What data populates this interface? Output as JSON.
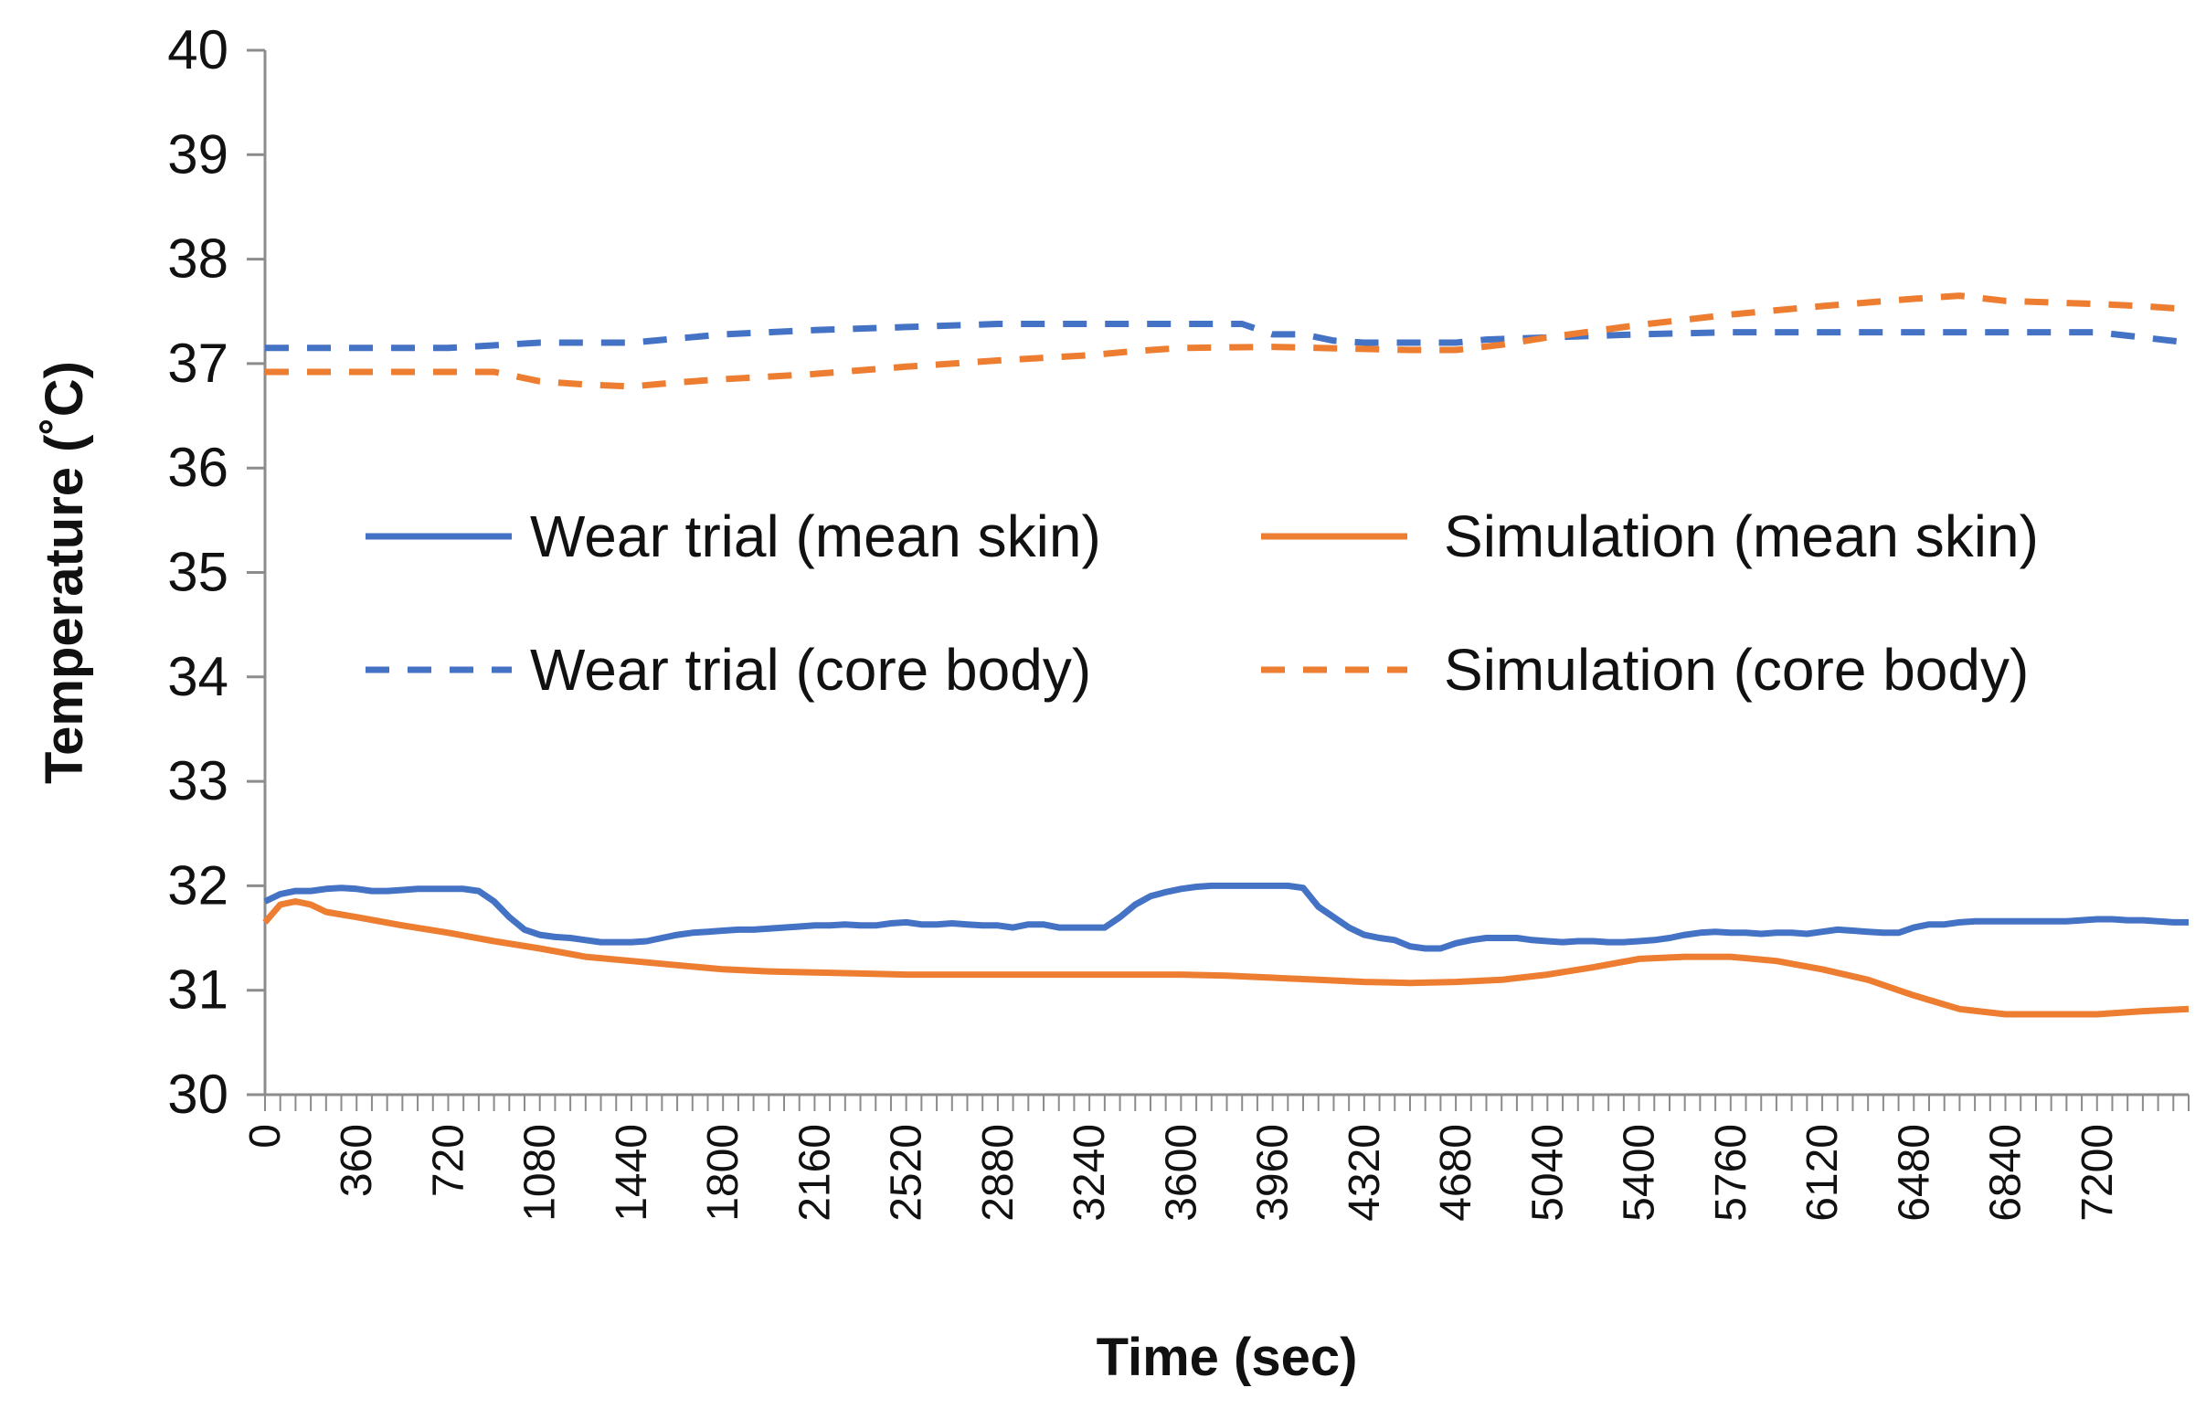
{
  "chart_data": {
    "type": "line",
    "title": "",
    "xlabel": "Time (sec)",
    "ylabel": "Temperature (˚C)",
    "xlim": [
      0,
      7560
    ],
    "ylim": [
      30,
      40
    ],
    "yticks": [
      30,
      31,
      32,
      33,
      34,
      35,
      36,
      37,
      38,
      39,
      40
    ],
    "xtick_labels": [
      0,
      360,
      720,
      1080,
      1440,
      1800,
      2160,
      2520,
      2880,
      3240,
      3600,
      3960,
      4320,
      4680,
      5040,
      5400,
      5760,
      6120,
      6480,
      6840,
      7200
    ],
    "minor_tick_step": 60,
    "grid": false,
    "legend_position": "center",
    "series": [
      {
        "name": "Wear trial (mean skin)",
        "color": "#4472C4",
        "dash": "solid",
        "x": [
          0,
          60,
          120,
          180,
          240,
          300,
          360,
          420,
          480,
          540,
          600,
          660,
          720,
          780,
          840,
          900,
          960,
          1020,
          1080,
          1140,
          1200,
          1260,
          1320,
          1380,
          1440,
          1500,
          1560,
          1620,
          1680,
          1740,
          1800,
          1860,
          1920,
          1980,
          2040,
          2100,
          2160,
          2220,
          2280,
          2340,
          2400,
          2460,
          2520,
          2580,
          2640,
          2700,
          2760,
          2820,
          2880,
          2940,
          3000,
          3060,
          3120,
          3180,
          3240,
          3300,
          3360,
          3420,
          3480,
          3540,
          3600,
          3660,
          3720,
          3780,
          3840,
          3900,
          3960,
          4020,
          4080,
          4140,
          4200,
          4260,
          4320,
          4380,
          4440,
          4500,
          4560,
          4620,
          4680,
          4740,
          4800,
          4860,
          4920,
          4980,
          5040,
          5100,
          5160,
          5220,
          5280,
          5340,
          5400,
          5460,
          5520,
          5580,
          5640,
          5700,
          5760,
          5820,
          5880,
          5940,
          6000,
          6060,
          6120,
          6180,
          6240,
          6300,
          6360,
          6420,
          6480,
          6540,
          6600,
          6660,
          6720,
          6780,
          6840,
          6900,
          6960,
          7020,
          7080,
          7140,
          7200,
          7260,
          7320,
          7380,
          7440,
          7500,
          7560
        ],
        "values": [
          31.85,
          31.92,
          31.95,
          31.95,
          31.97,
          31.98,
          31.97,
          31.95,
          31.95,
          31.96,
          31.97,
          31.97,
          31.97,
          31.97,
          31.95,
          31.85,
          31.7,
          31.58,
          31.53,
          31.51,
          31.5,
          31.48,
          31.46,
          31.46,
          31.46,
          31.47,
          31.5,
          31.53,
          31.55,
          31.56,
          31.57,
          31.58,
          31.58,
          31.59,
          31.6,
          31.61,
          31.62,
          31.62,
          31.63,
          31.62,
          31.62,
          31.64,
          31.65,
          31.63,
          31.63,
          31.64,
          31.63,
          31.62,
          31.62,
          31.6,
          31.63,
          31.63,
          31.6,
          31.6,
          31.6,
          31.6,
          31.7,
          31.82,
          31.9,
          31.94,
          31.97,
          31.99,
          32.0,
          32.0,
          32.0,
          32.0,
          32.0,
          32.0,
          31.98,
          31.8,
          31.7,
          31.6,
          31.53,
          31.5,
          31.48,
          31.42,
          31.4,
          31.4,
          31.45,
          31.48,
          31.5,
          31.5,
          31.5,
          31.48,
          31.47,
          31.46,
          31.47,
          31.47,
          31.46,
          31.46,
          31.47,
          31.48,
          31.5,
          31.53,
          31.55,
          31.56,
          31.55,
          31.55,
          31.54,
          31.55,
          31.55,
          31.54,
          31.56,
          31.58,
          31.57,
          31.56,
          31.55,
          31.55,
          31.6,
          31.63,
          31.63,
          31.65,
          31.66,
          31.66,
          31.66,
          31.66,
          31.66,
          31.66,
          31.66,
          31.67,
          31.68,
          31.68,
          31.67,
          31.67,
          31.66,
          31.65,
          31.65
        ]
      },
      {
        "name": "Wear trial (core body)",
        "color": "#4472C4",
        "dash": "dashed",
        "x": [
          0,
          360,
          720,
          1080,
          1440,
          1800,
          2160,
          2520,
          2880,
          3240,
          3600,
          3840,
          3900,
          3960,
          4080,
          4200,
          4320,
          4560,
          4680,
          4800,
          5040,
          5400,
          5760,
          6120,
          6480,
          6840,
          7200,
          7560
        ],
        "values": [
          37.15,
          37.15,
          37.15,
          37.2,
          37.2,
          37.28,
          37.32,
          37.35,
          37.38,
          37.38,
          37.38,
          37.38,
          37.33,
          37.28,
          37.28,
          37.22,
          37.2,
          37.2,
          37.2,
          37.23,
          37.25,
          37.28,
          37.3,
          37.3,
          37.3,
          37.3,
          37.3,
          37.2
        ]
      },
      {
        "name": "Simulation (mean skin)",
        "color": "#ED7D31",
        "dash": "solid",
        "x": [
          0,
          60,
          120,
          180,
          240,
          360,
          540,
          720,
          900,
          1080,
          1260,
          1440,
          1620,
          1800,
          1980,
          2160,
          2340,
          2520,
          2700,
          2880,
          3060,
          3240,
          3420,
          3600,
          3780,
          3960,
          4140,
          4320,
          4500,
          4680,
          4860,
          5040,
          5220,
          5400,
          5580,
          5760,
          5940,
          6120,
          6300,
          6480,
          6660,
          6840,
          7020,
          7200,
          7380,
          7560
        ],
        "values": [
          31.65,
          31.82,
          31.85,
          31.82,
          31.75,
          31.7,
          31.62,
          31.55,
          31.47,
          31.4,
          31.32,
          31.28,
          31.24,
          31.2,
          31.18,
          31.17,
          31.16,
          31.15,
          31.15,
          31.15,
          31.15,
          31.15,
          31.15,
          31.15,
          31.14,
          31.12,
          31.1,
          31.08,
          31.07,
          31.08,
          31.1,
          31.15,
          31.22,
          31.3,
          31.32,
          31.32,
          31.28,
          31.2,
          31.1,
          30.95,
          30.82,
          30.77,
          30.77,
          30.77,
          30.8,
          30.82
        ]
      },
      {
        "name": "Simulation (core body)",
        "color": "#ED7D31",
        "dash": "dashed",
        "x": [
          0,
          360,
          720,
          900,
          1080,
          1260,
          1440,
          1620,
          1800,
          2160,
          2520,
          2880,
          3240,
          3420,
          3600,
          3960,
          4320,
          4500,
          4680,
          4860,
          5040,
          5400,
          5760,
          6120,
          6480,
          6660,
          6840,
          7200,
          7380,
          7560
        ],
        "values": [
          36.92,
          36.92,
          36.92,
          36.92,
          36.83,
          36.8,
          36.78,
          36.82,
          36.85,
          36.9,
          36.97,
          37.03,
          37.08,
          37.12,
          37.15,
          37.16,
          37.14,
          37.13,
          37.13,
          37.18,
          37.25,
          37.37,
          37.47,
          37.55,
          37.62,
          37.65,
          37.6,
          37.57,
          37.55,
          37.52
        ]
      }
    ]
  }
}
